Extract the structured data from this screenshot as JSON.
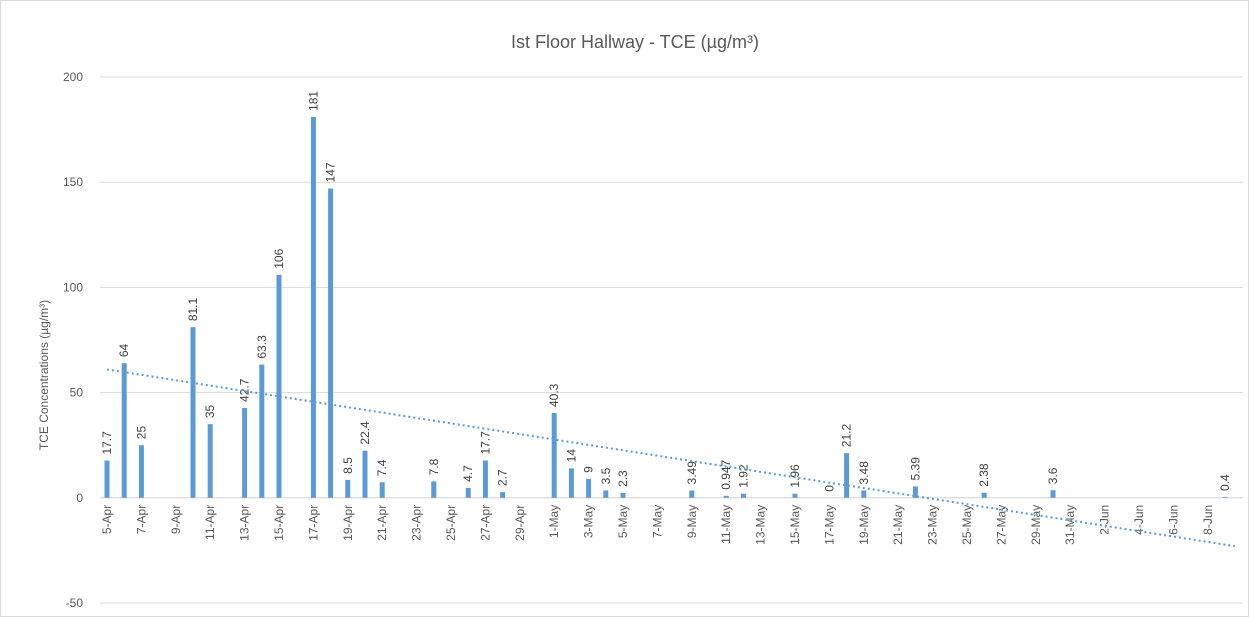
{
  "chart_data": {
    "type": "bar",
    "title": "Ist Floor Hallway  - TCE (µg/m³)",
    "y_label": "TCE Concentrations (µg/m³)",
    "categories": [
      "5-Apr",
      null,
      "7-Apr",
      null,
      "9-Apr",
      null,
      "11-Apr",
      null,
      "13-Apr",
      null,
      "15-Apr",
      null,
      "17-Apr",
      null,
      "19-Apr",
      null,
      "21-Apr",
      null,
      "23-Apr",
      null,
      "25-Apr",
      null,
      "27-Apr",
      null,
      "29-Apr",
      null,
      "1-May",
      null,
      "3-May",
      null,
      "5-May",
      null,
      "7-May",
      null,
      "9-May",
      null,
      "11-May",
      null,
      "13-May",
      null,
      "15-May",
      null,
      "17-May",
      null,
      "19-May",
      null,
      "21-May",
      null,
      "23-May",
      null,
      "25-May",
      null,
      "27-May",
      null,
      "29-May",
      null,
      "31-May",
      null,
      "2-Jun",
      null,
      "4-Jun",
      null,
      "6-Jun",
      null,
      "8-Jun",
      null
    ],
    "values": [
      17.7,
      64,
      25,
      null,
      null,
      81.1,
      35,
      null,
      42.7,
      63.3,
      106,
      null,
      181,
      147,
      8.5,
      22.4,
      7.4,
      null,
      null,
      7.8,
      null,
      4.7,
      17.7,
      2.7,
      null,
      null,
      40.3,
      14,
      9,
      3.5,
      2.3,
      null,
      null,
      null,
      3.49,
      null,
      0.947,
      1.92,
      null,
      null,
      1.96,
      null,
      0,
      21.2,
      3.48,
      null,
      null,
      5.39,
      null,
      null,
      null,
      2.38,
      null,
      null,
      null,
      3.6,
      null,
      null,
      null,
      null,
      null,
      null,
      null,
      null,
      null,
      0.4
    ],
    "color": "#5b9bd5",
    "trendline": {
      "values": [
        61,
        -23
      ],
      "color": "#5b9bd5"
    },
    "ylim": [
      -50,
      200
    ],
    "yticks": [
      -50,
      0,
      50,
      100,
      150,
      200
    ],
    "grid": true
  }
}
